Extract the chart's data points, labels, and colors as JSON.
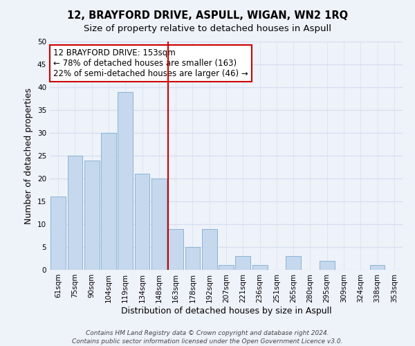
{
  "title": "12, BRAYFORD DRIVE, ASPULL, WIGAN, WN2 1RQ",
  "subtitle": "Size of property relative to detached houses in Aspull",
  "xlabel": "Distribution of detached houses by size in Aspull",
  "ylabel": "Number of detached properties",
  "categories": [
    "61sqm",
    "75sqm",
    "90sqm",
    "104sqm",
    "119sqm",
    "134sqm",
    "148sqm",
    "163sqm",
    "178sqm",
    "192sqm",
    "207sqm",
    "221sqm",
    "236sqm",
    "251sqm",
    "265sqm",
    "280sqm",
    "295sqm",
    "309sqm",
    "324sqm",
    "338sqm",
    "353sqm"
  ],
  "values": [
    16,
    25,
    24,
    30,
    39,
    21,
    20,
    9,
    5,
    9,
    1,
    3,
    1,
    0,
    3,
    0,
    2,
    0,
    0,
    1,
    0
  ],
  "bar_color": "#c5d8ed",
  "bar_edge_color": "#8ab4d4",
  "highlight_line_color": "#cc0000",
  "annotation_line1": "12 BRAYFORD DRIVE: 153sqm",
  "annotation_line2": "← 78% of detached houses are smaller (163)",
  "annotation_line3": "22% of semi-detached houses are larger (46) →",
  "annotation_box_color": "#ffffff",
  "annotation_box_edge_color": "#cc0000",
  "ylim": [
    0,
    50
  ],
  "yticks": [
    0,
    5,
    10,
    15,
    20,
    25,
    30,
    35,
    40,
    45,
    50
  ],
  "footer_line1": "Contains HM Land Registry data © Crown copyright and database right 2024.",
  "footer_line2": "Contains public sector information licensed under the Open Government Licence v3.0.",
  "background_color": "#eef2f9",
  "plot_bg_color": "#eef2f9",
  "grid_color": "#d8dff0",
  "title_fontsize": 10.5,
  "subtitle_fontsize": 9.5,
  "label_fontsize": 9,
  "tick_fontsize": 7.5,
  "annotation_fontsize": 8.5,
  "footer_fontsize": 6.5
}
